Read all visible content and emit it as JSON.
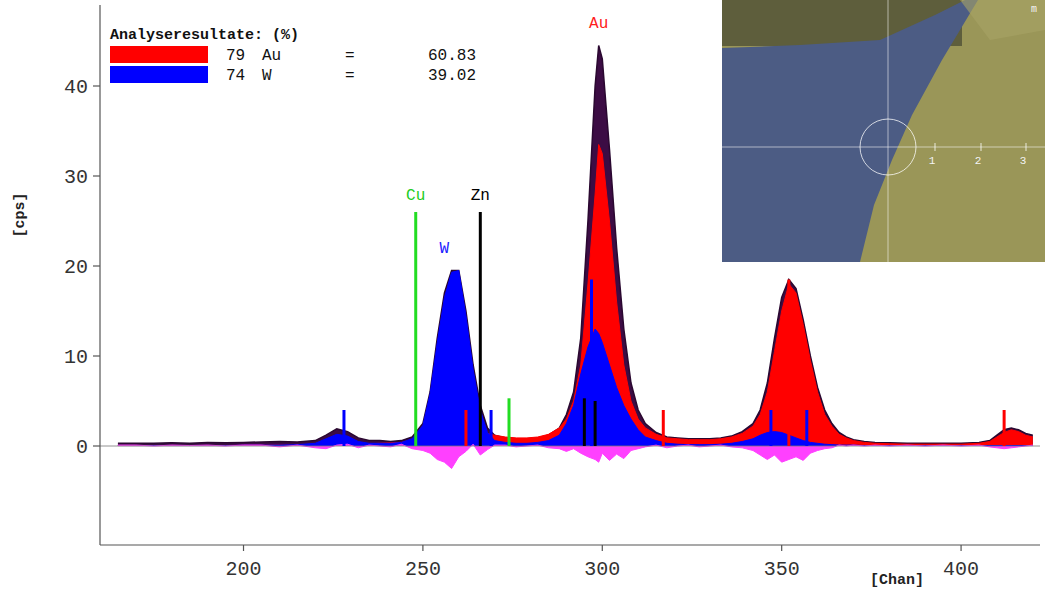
{
  "chart_data": {
    "type": "area",
    "xlabel": "[Chan]",
    "ylabel": "[cps]",
    "xlim": [
      160,
      422
    ],
    "xticks": [
      200,
      250,
      300,
      350,
      400
    ],
    "ylim": [
      -11,
      49
    ],
    "yticks": [
      0,
      10,
      20,
      30,
      40
    ],
    "grid": false,
    "x": [
      165,
      170,
      175,
      180,
      185,
      190,
      195,
      200,
      205,
      210,
      215,
      220,
      223,
      226,
      229,
      232,
      235,
      238,
      241,
      244,
      247,
      250,
      252,
      254,
      256,
      258,
      260,
      262,
      264,
      266,
      268,
      270,
      273,
      276,
      279,
      282,
      285,
      288,
      290,
      292,
      294,
      296,
      298,
      299,
      300,
      302,
      304,
      306,
      308,
      310,
      312,
      315,
      318,
      321,
      324,
      327,
      330,
      333,
      336,
      339,
      342,
      344,
      346,
      348,
      350,
      352,
      354,
      356,
      358,
      360,
      362,
      364,
      366,
      368,
      370,
      373,
      376,
      380,
      385,
      390,
      395,
      400,
      405,
      408,
      410,
      412,
      414,
      416,
      418,
      420
    ],
    "series": [
      {
        "color": "#3c0c44",
        "values": [
          0.3,
          0.3,
          0.3,
          0.35,
          0.3,
          0.4,
          0.35,
          0.4,
          0.45,
          0.5,
          0.45,
          0.6,
          1.2,
          1.9,
          1.6,
          0.9,
          0.6,
          0.6,
          0.5,
          0.6,
          1.0,
          2.5,
          6,
          12,
          17,
          19.5,
          19.5,
          15,
          9,
          4.5,
          2,
          1.2,
          0.9,
          0.8,
          0.8,
          0.9,
          1.2,
          2,
          3.5,
          6,
          12,
          25,
          40,
          44.5,
          43,
          33,
          22,
          13,
          7,
          4,
          2.5,
          1.5,
          1,
          0.9,
          0.8,
          0.8,
          0.8,
          0.9,
          1.1,
          1.6,
          2.5,
          4,
          7,
          12,
          16.5,
          18.5,
          17.5,
          14,
          10,
          6.5,
          4,
          2.5,
          1.5,
          1,
          0.7,
          0.5,
          0.4,
          0.35,
          0.3,
          0.3,
          0.3,
          0.3,
          0.4,
          0.6,
          1.2,
          1.8,
          2,
          1.8,
          1.4,
          1.2
        ]
      },
      {
        "color": "#ff0000",
        "values": [
          0.05,
          0.05,
          0.05,
          0.05,
          0.05,
          0.05,
          0.05,
          0.1,
          0.1,
          0.1,
          0.1,
          0.15,
          0.15,
          0.2,
          0.2,
          0.2,
          0.25,
          0.3,
          0.35,
          0.4,
          0.5,
          0.6,
          0.7,
          0.8,
          0.9,
          1.0,
          1.2,
          1.4,
          1.5,
          1.5,
          1.4,
          1.2,
          1.0,
          0.9,
          0.9,
          1.0,
          1.3,
          2,
          3,
          5,
          9,
          18,
          28,
          33.5,
          32.5,
          25,
          16,
          9,
          5,
          3,
          2,
          1.3,
          0.9,
          0.8,
          0.7,
          0.7,
          0.7,
          0.8,
          1,
          1.4,
          2.2,
          3.5,
          6,
          10.5,
          15,
          18,
          17,
          13.5,
          9.5,
          6,
          3.5,
          2.2,
          1.3,
          0.9,
          0.6,
          0.4,
          0.3,
          0.25,
          0.2,
          0.2,
          0.2,
          0.2,
          0.3,
          0.5,
          1,
          1.5,
          1.8,
          1.6,
          1.2,
          1
        ]
      },
      {
        "color": "#0000ff",
        "values": [
          0.05,
          0.05,
          0.05,
          0.05,
          0.05,
          0.05,
          0.05,
          0.1,
          0.1,
          0.1,
          0.15,
          0.3,
          0.8,
          1.3,
          1.1,
          0.5,
          0.3,
          0.3,
          0.3,
          0.4,
          0.8,
          2.3,
          5.8,
          11.5,
          16.5,
          19.3,
          19.5,
          14.5,
          8.5,
          4,
          1.5,
          0.6,
          0.4,
          0.3,
          0.3,
          0.4,
          0.6,
          1.2,
          2.5,
          4.5,
          8,
          11,
          13,
          12.5,
          11.5,
          9,
          6.5,
          4.5,
          3,
          1.8,
          1,
          0.6,
          0.3,
          0.2,
          0.15,
          0.15,
          0.15,
          0.2,
          0.3,
          0.5,
          0.8,
          1.2,
          1.5,
          1.6,
          1.5,
          1.2,
          0.9,
          0.6,
          0.4,
          0.3,
          0.2,
          0.15,
          0.1,
          0.1,
          0.1,
          0.05,
          0.05,
          0.05,
          0.05,
          0.05,
          0.05,
          0.05,
          0.05,
          0.05,
          0.05,
          0.05,
          0.05,
          0.05,
          0.05,
          0.05
        ]
      },
      {
        "color": "#ff40ff",
        "values": [
          0.1,
          0.1,
          0,
          0.1,
          0.05,
          0.1,
          0,
          0.1,
          0.1,
          -0.1,
          0.1,
          -0.2,
          -0.3,
          0.1,
          0.2,
          -0.2,
          0.1,
          0,
          -0.1,
          0.2,
          -0.3,
          -0.5,
          -0.8,
          -1.5,
          -1.8,
          -2.5,
          -1.2,
          -0.6,
          0.2,
          -1,
          -0.4,
          0.1,
          0.1,
          -0.1,
          0,
          0.1,
          -0.2,
          -0.3,
          -0.6,
          -0.3,
          -0.8,
          -1.2,
          -1.5,
          -1.8,
          -0.8,
          -1.6,
          -0.9,
          -1.4,
          -0.5,
          -0.3,
          -0.1,
          0.1,
          -0.2,
          0,
          0.1,
          -0.1,
          0,
          0.1,
          -0.1,
          -0.2,
          -0.5,
          -1,
          -1.5,
          -1,
          -1.8,
          -1.5,
          -1.2,
          -1.6,
          -0.8,
          -0.5,
          -0.3,
          -0.2,
          0.1,
          0,
          0.1,
          0,
          0.1,
          0,
          0.1,
          0,
          0.1,
          0,
          0.1,
          -0.1,
          -0.2,
          -0.3,
          -0.2,
          -0.1,
          0,
          0.1
        ]
      }
    ],
    "element_lines": {
      "x": [
        228,
        248,
        262,
        266,
        269,
        274,
        295,
        297,
        298,
        317,
        347,
        352,
        357,
        412
      ],
      "values": [
        4,
        26,
        4,
        26,
        4,
        5.3,
        5.3,
        18.5,
        5,
        4,
        4,
        18.5,
        4,
        4
      ],
      "colors": [
        "#0000ff",
        "#22dd22",
        "#ff0000",
        "#000000",
        "#0000ff",
        "#22dd22",
        "#000000",
        "#0000ff",
        "#000000",
        "#ff0000",
        "#0000ff",
        "#ff0000",
        "#0000ff",
        "#ff0000"
      ]
    },
    "annotations": [
      {
        "text": "Au",
        "x": 299,
        "y": 46.5,
        "color": "#ff2020"
      },
      {
        "text": "W",
        "x": 256,
        "y": 21.5,
        "color": "#2020ff"
      },
      {
        "text": "Cu",
        "x": 248,
        "y": 27.3,
        "color": "#22cc22"
      },
      {
        "text": "Zn",
        "x": 266,
        "y": 27.3,
        "color": "#000000"
      }
    ],
    "composition_title": "Analyseresultate: (%)",
    "separator": "=",
    "composition": [
      {
        "z": 79,
        "symbol": "Au",
        "percent": 60.83,
        "color": "#ff0000"
      },
      {
        "z": 74,
        "symbol": "W",
        "percent": 39.02,
        "color": "#0000ff"
      }
    ]
  },
  "inset": {
    "scale_labels": [
      "1",
      "2",
      "3"
    ],
    "unit": "m"
  }
}
